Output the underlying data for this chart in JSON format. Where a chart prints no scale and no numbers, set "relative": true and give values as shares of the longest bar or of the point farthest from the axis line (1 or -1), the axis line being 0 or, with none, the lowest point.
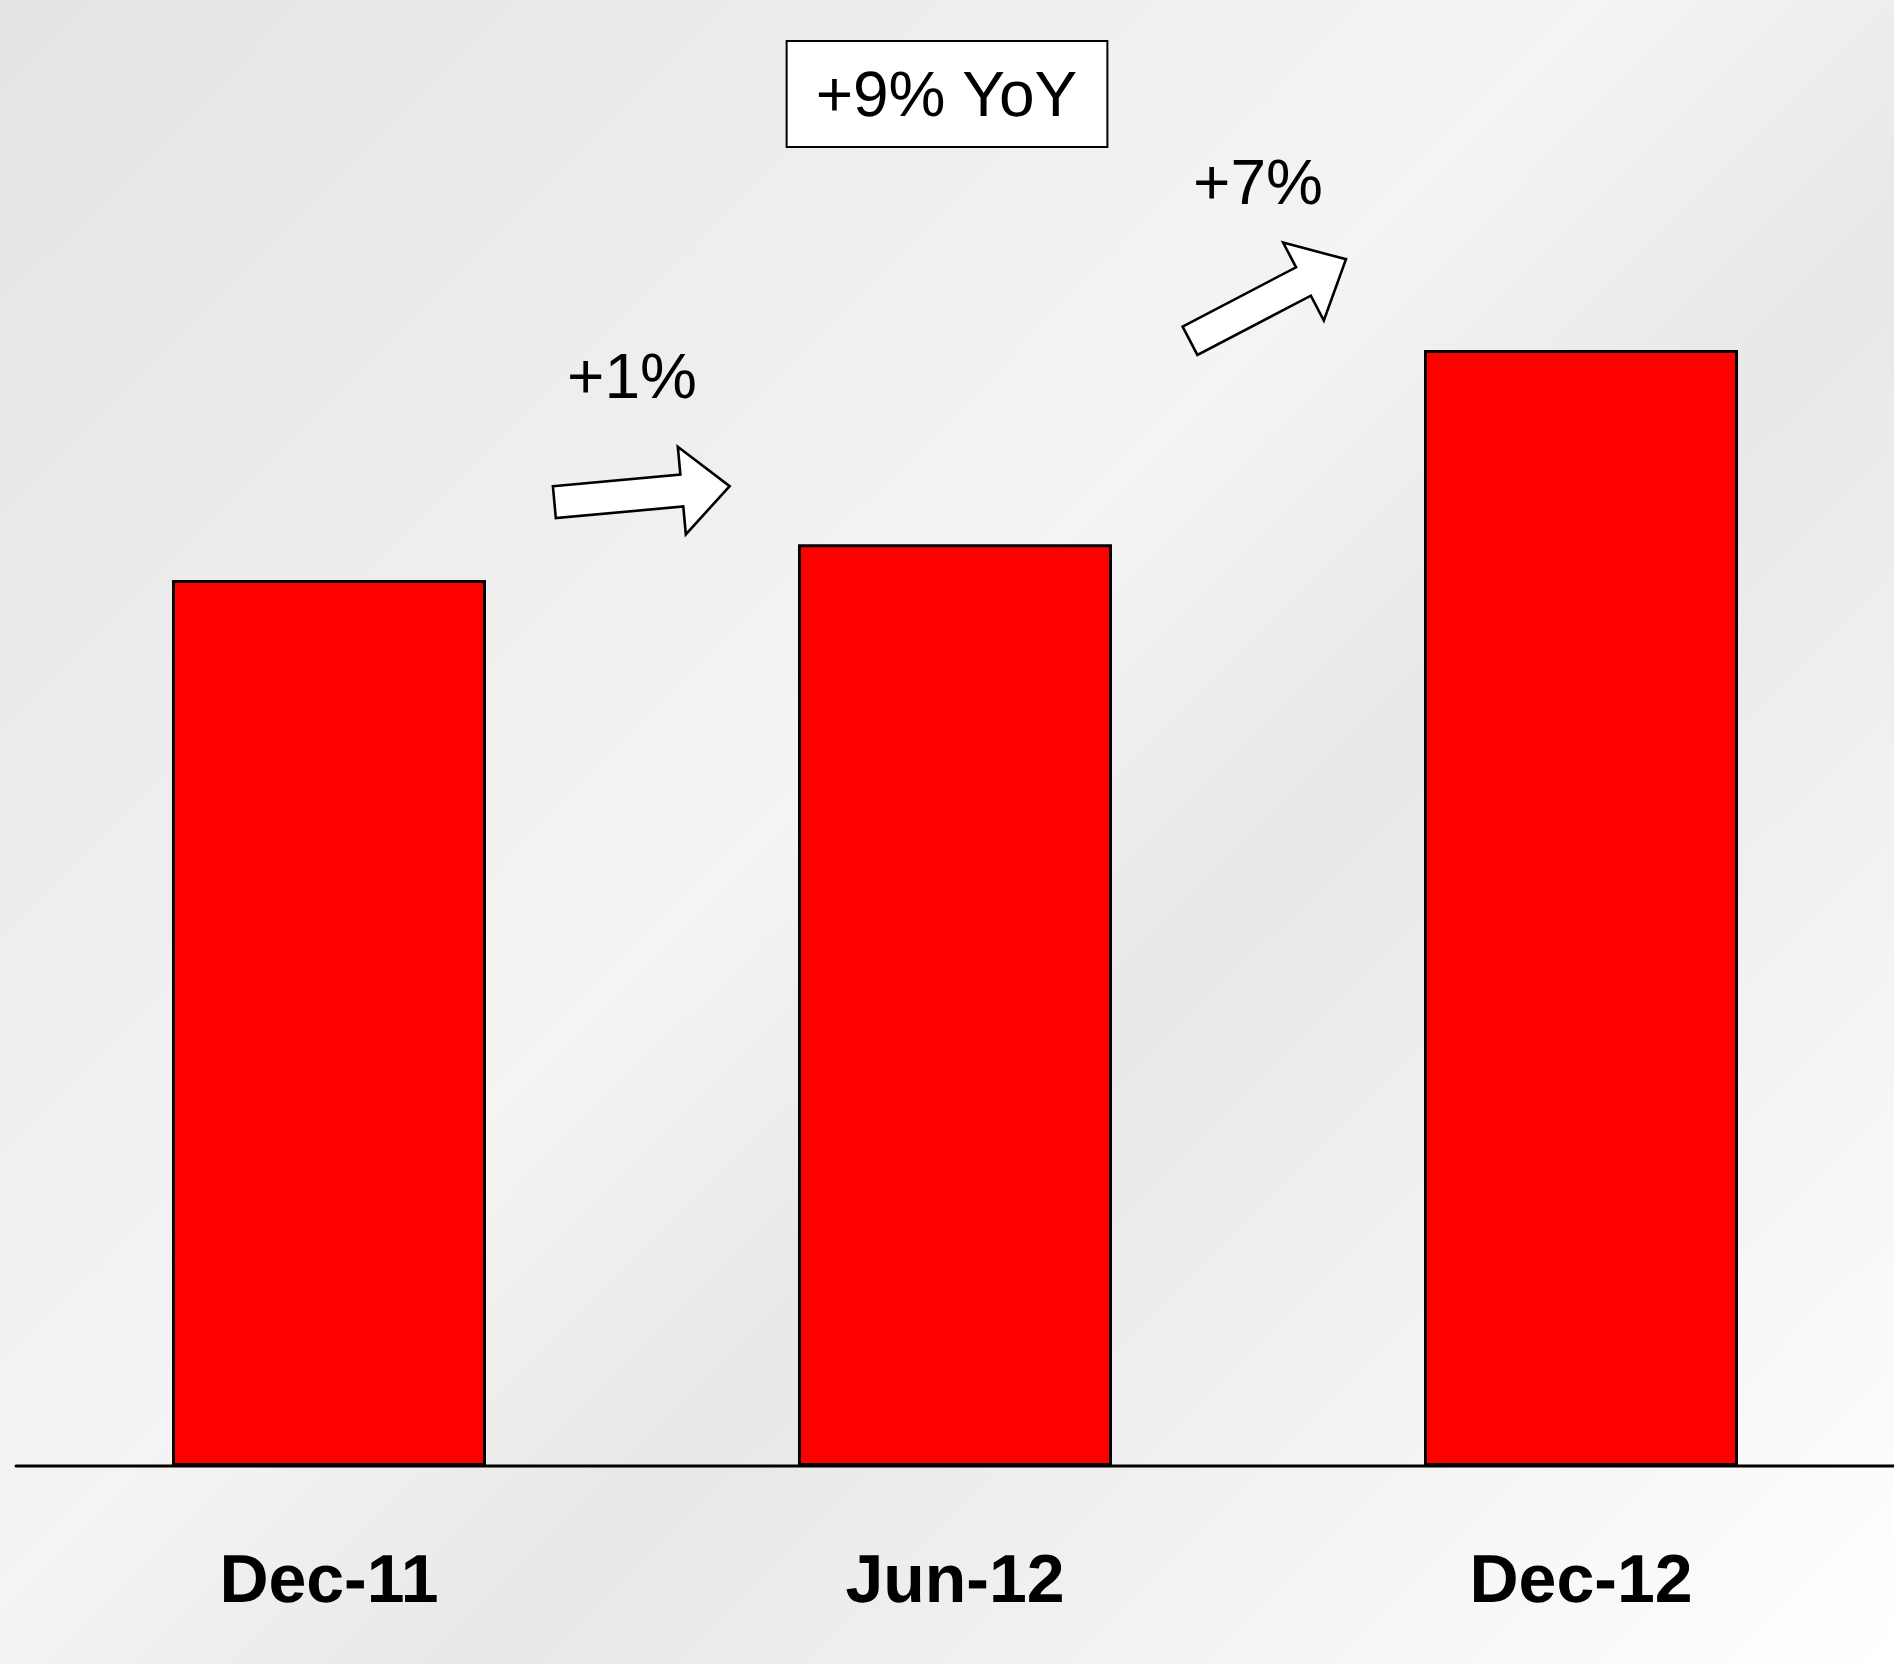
{
  "chart_data": {
    "type": "bar",
    "relative": true,
    "categories": [
      "Dec-11",
      "Jun-12",
      "Dec-12"
    ],
    "values": [
      0.794,
      0.826,
      1
    ],
    "color": "#ff0000",
    "annotations": [
      "+9% YoY",
      "+1%",
      "+7%"
    ]
  }
}
